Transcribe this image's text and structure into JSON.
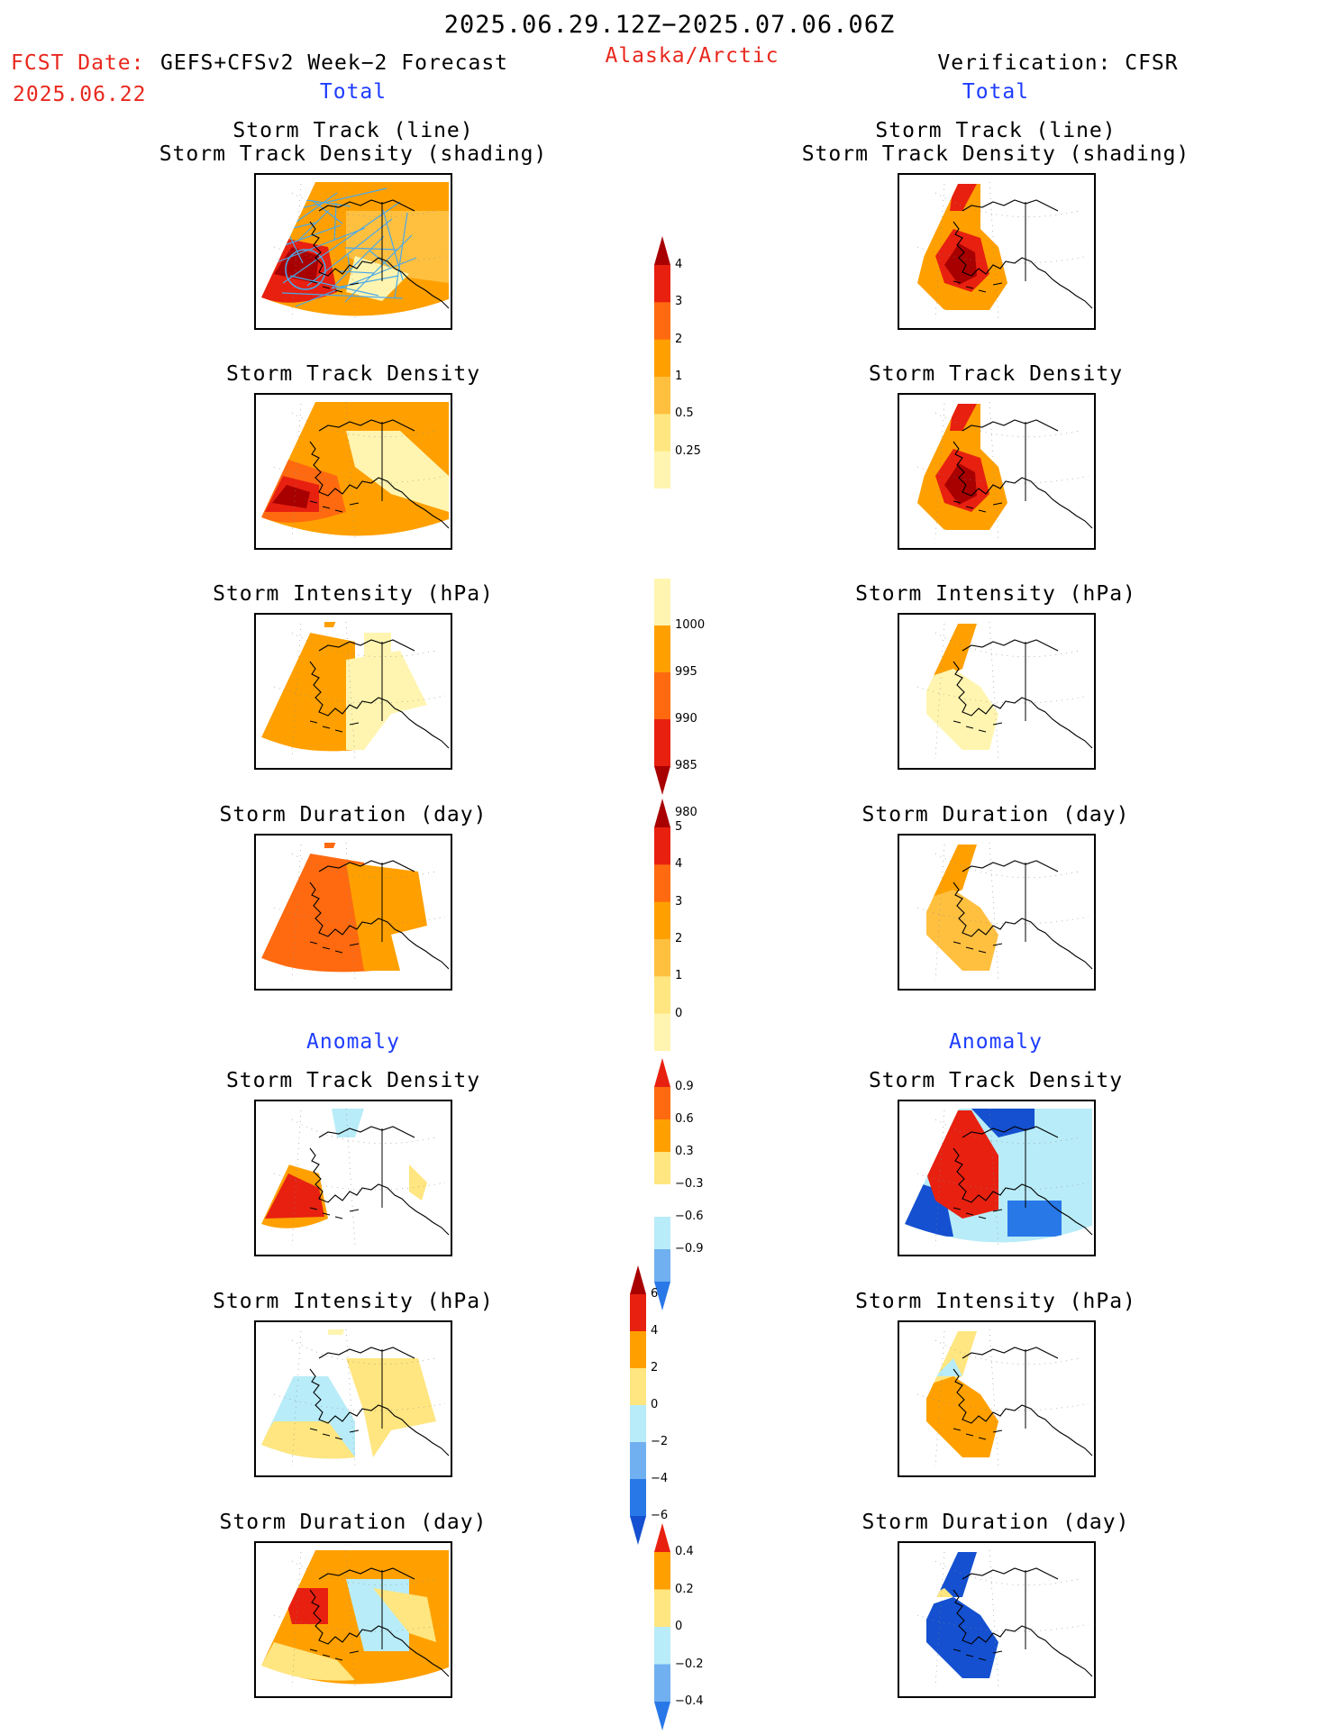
{
  "header": {
    "period": "2025.06.29.12Z−2025.07.06.06Z",
    "fcst_label": "FCST Date:",
    "fcst_date": "2025.06.22",
    "model": "GEFS+CFSv2 Week−2 Forecast",
    "region": "Alaska/Arctic",
    "verification": "Verification: CFSR"
  },
  "sections": {
    "total": "Total",
    "anomaly": "Anomaly"
  },
  "panel_titles": {
    "track_line": "Storm Track (line)",
    "track_shading": "Storm Track Density (shading)",
    "density": "Storm Track Density",
    "intensity": "Storm Intensity (hPa)",
    "duration": "Storm Duration (day)"
  },
  "colorbars": {
    "density_total": [
      "4",
      "3",
      "2",
      "1",
      "0.5",
      "0.25"
    ],
    "intensity_total": [
      "1000",
      "995",
      "990",
      "985",
      "980"
    ],
    "duration_total": [
      "5",
      "4",
      "3",
      "2",
      "1",
      "0"
    ],
    "density_anom": [
      "0.9",
      "0.6",
      "0.3",
      "−0.3",
      "−0.6",
      "−0.9"
    ],
    "intensity_anom": [
      "6",
      "4",
      "2",
      "0",
      "−2",
      "−4",
      "−6"
    ],
    "duration_anom": [
      "0.4",
      "0.2",
      "0",
      "−0.2",
      "−0.4"
    ]
  },
  "colors": {
    "title_red": "#e8281e",
    "section_blue": "#1e3cff",
    "pale_yellow": "#fff5b0",
    "light_yellow": "#ffe680",
    "light_orange": "#ffc040",
    "orange": "#ffa000",
    "dark_orange": "#ff6a10",
    "red": "#e82010",
    "dark_red": "#a80000",
    "light_blue": "#b8ecf8",
    "mid_blue": "#70b0f0",
    "blue": "#2878e8",
    "dark_blue": "#1450d0",
    "track_line": "#4aa8e8"
  }
}
